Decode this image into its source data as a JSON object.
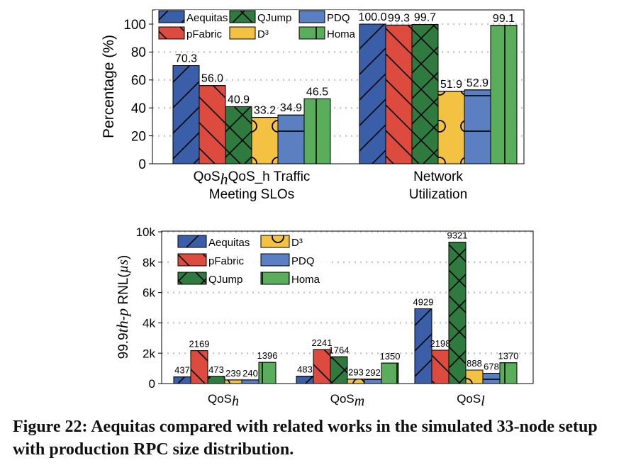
{
  "chart_data": [
    {
      "type": "bar",
      "ylabel": "Percentage (%)",
      "ylim": [
        0,
        100
      ],
      "yticks": [
        0,
        20,
        40,
        60,
        80,
        100
      ],
      "grid": true,
      "legend": "top",
      "categories": [
        [
          "QoS_h Traffic",
          "Meeting SLOs"
        ],
        [
          "Network",
          "Utilization"
        ]
      ],
      "series": [
        {
          "name": "Aequitas",
          "values": [
            70.3,
            100.0
          ]
        },
        {
          "name": "pFabric",
          "values": [
            56.0,
            99.3
          ]
        },
        {
          "name": "QJump",
          "values": [
            40.9,
            99.7
          ]
        },
        {
          "name": "D³",
          "values": [
            33.2,
            51.9
          ]
        },
        {
          "name": "PDQ",
          "values": [
            34.9,
            52.9
          ]
        },
        {
          "name": "Homa",
          "values": [
            46.5,
            99.1
          ]
        }
      ],
      "value_labels": [
        [
          "70.3",
          "56.0",
          "40.9",
          "33.2",
          "34.9",
          "46.5"
        ],
        [
          "100.0",
          "99.3",
          "99.7",
          "51.9",
          "52.9",
          "99.1"
        ]
      ]
    },
    {
      "type": "bar",
      "ylabel": "99.9th-p RNL(µs)",
      "ylim": [
        0,
        10000
      ],
      "yticks": [
        0,
        2000,
        4000,
        6000,
        8000,
        10000
      ],
      "ytick_labels": [
        "0",
        "2k",
        "4k",
        "6k",
        "8k",
        "10k"
      ],
      "grid": true,
      "legend": "top-left",
      "categories": [
        "QoS_h",
        "QoS_m",
        "QoS_l"
      ],
      "series": [
        {
          "name": "Aequitas",
          "values": [
            437,
            483,
            4929
          ]
        },
        {
          "name": "pFabric",
          "values": [
            2169,
            2241,
            2198
          ]
        },
        {
          "name": "QJump",
          "values": [
            473,
            1764,
            9321
          ]
        },
        {
          "name": "D³",
          "values": [
            239,
            293,
            888
          ]
        },
        {
          "name": "PDQ",
          "values": [
            240,
            292,
            678
          ]
        },
        {
          "name": "Homa",
          "values": [
            1396,
            1350,
            1370
          ]
        }
      ]
    }
  ],
  "colors": {
    "Aequitas": "#3a5ea8",
    "pFabric": "#dd4b3e",
    "QJump": "#2f7a3e",
    "D³": "#f4c242",
    "PDQ": "#5b7fc0",
    "Homa": "#59ad5b"
  },
  "hatches": {
    "Aequitas": "slash",
    "pFabric": "backslash",
    "QJump": "cross",
    "D³": "circle",
    "PDQ": "horizontal",
    "Homa": "vertical"
  },
  "legend_layouts": [
    [
      "Aequitas",
      "QJump",
      "PDQ",
      "pFabric",
      "D³",
      "Homa"
    ],
    [
      "Aequitas",
      "D³",
      "pFabric",
      "PDQ",
      "QJump",
      "Homa"
    ]
  ],
  "caption": "Figure 22: Aequitas compared with related works in the simulated 33-node setup with production RPC size distribution."
}
